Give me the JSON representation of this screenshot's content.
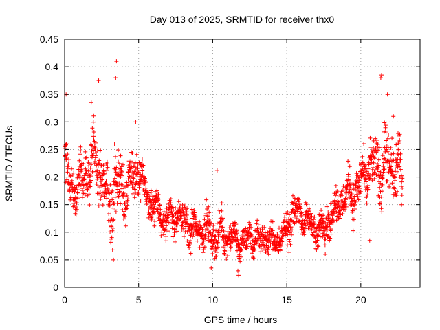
{
  "chart_data": {
    "type": "scatter",
    "title": "Day 013 of 2025, SRMTID for receiver thx0",
    "xlabel": "GPS time / hours",
    "ylabel": "SRMTID / TECUs",
    "xlim": [
      0,
      24
    ],
    "ylim": [
      0,
      0.45
    ],
    "x_ticks": [
      0,
      5,
      10,
      15,
      20
    ],
    "y_ticks": [
      0,
      0.05,
      0.1,
      0.15,
      0.2,
      0.25,
      0.3,
      0.35,
      0.4,
      0.45
    ],
    "x_tick_labels": [
      "0",
      "5",
      "10",
      "15",
      "20"
    ],
    "y_tick_labels": [
      "0",
      "0.05",
      "0.1",
      "0.15",
      "0.2",
      "0.25",
      "0.3",
      "0.35",
      "0.4",
      "0.45"
    ],
    "grid": true,
    "marker": "+",
    "color": "#ff0000",
    "series": [
      {
        "name": "SRMTID",
        "envelope_x": [
          0.0,
          0.5,
          1.0,
          1.5,
          2.0,
          2.5,
          3.0,
          3.5,
          4.0,
          4.5,
          5.0,
          5.5,
          6.0,
          6.5,
          7.0,
          7.5,
          8.0,
          8.5,
          9.0,
          9.5,
          10.0,
          10.5,
          11.0,
          11.5,
          12.0,
          12.5,
          13.0,
          13.5,
          14.0,
          14.5,
          15.0,
          15.5,
          16.0,
          16.5,
          17.0,
          17.5,
          18.0,
          18.5,
          19.0,
          19.5,
          20.0,
          20.5,
          21.0,
          21.5,
          22.0,
          22.5,
          22.8
        ],
        "envelope_center": [
          0.22,
          0.18,
          0.19,
          0.21,
          0.23,
          0.2,
          0.15,
          0.19,
          0.17,
          0.2,
          0.21,
          0.17,
          0.15,
          0.13,
          0.12,
          0.13,
          0.12,
          0.11,
          0.1,
          0.11,
          0.09,
          0.1,
          0.09,
          0.09,
          0.08,
          0.09,
          0.085,
          0.09,
          0.085,
          0.09,
          0.1,
          0.14,
          0.13,
          0.12,
          0.1,
          0.11,
          0.13,
          0.15,
          0.17,
          0.17,
          0.19,
          0.21,
          0.22,
          0.22,
          0.22,
          0.21,
          0.2
        ],
        "envelope_spread": [
          0.07,
          0.06,
          0.05,
          0.06,
          0.07,
          0.06,
          0.07,
          0.09,
          0.05,
          0.05,
          0.05,
          0.04,
          0.04,
          0.04,
          0.04,
          0.04,
          0.04,
          0.04,
          0.035,
          0.04,
          0.04,
          0.04,
          0.03,
          0.03,
          0.03,
          0.03,
          0.03,
          0.03,
          0.03,
          0.03,
          0.04,
          0.04,
          0.035,
          0.03,
          0.035,
          0.04,
          0.04,
          0.04,
          0.045,
          0.05,
          0.05,
          0.05,
          0.06,
          0.07,
          0.07,
          0.06,
          0.05
        ],
        "n_points": 1900,
        "outliers": [
          {
            "x": 0.1,
            "y": 0.35
          },
          {
            "x": 1.8,
            "y": 0.335
          },
          {
            "x": 2.3,
            "y": 0.375
          },
          {
            "x": 3.5,
            "y": 0.41
          },
          {
            "x": 3.45,
            "y": 0.38
          },
          {
            "x": 3.3,
            "y": 0.05
          },
          {
            "x": 4.8,
            "y": 0.3
          },
          {
            "x": 10.3,
            "y": 0.212
          },
          {
            "x": 11.75,
            "y": 0.022
          },
          {
            "x": 11.7,
            "y": 0.03
          },
          {
            "x": 21.4,
            "y": 0.385
          },
          {
            "x": 21.35,
            "y": 0.38
          },
          {
            "x": 21.8,
            "y": 0.35
          },
          {
            "x": 22.2,
            "y": 0.31
          },
          {
            "x": 17.6,
            "y": 0.06
          },
          {
            "x": 20.6,
            "y": 0.085
          },
          {
            "x": 9.9,
            "y": 0.035
          }
        ]
      }
    ]
  }
}
